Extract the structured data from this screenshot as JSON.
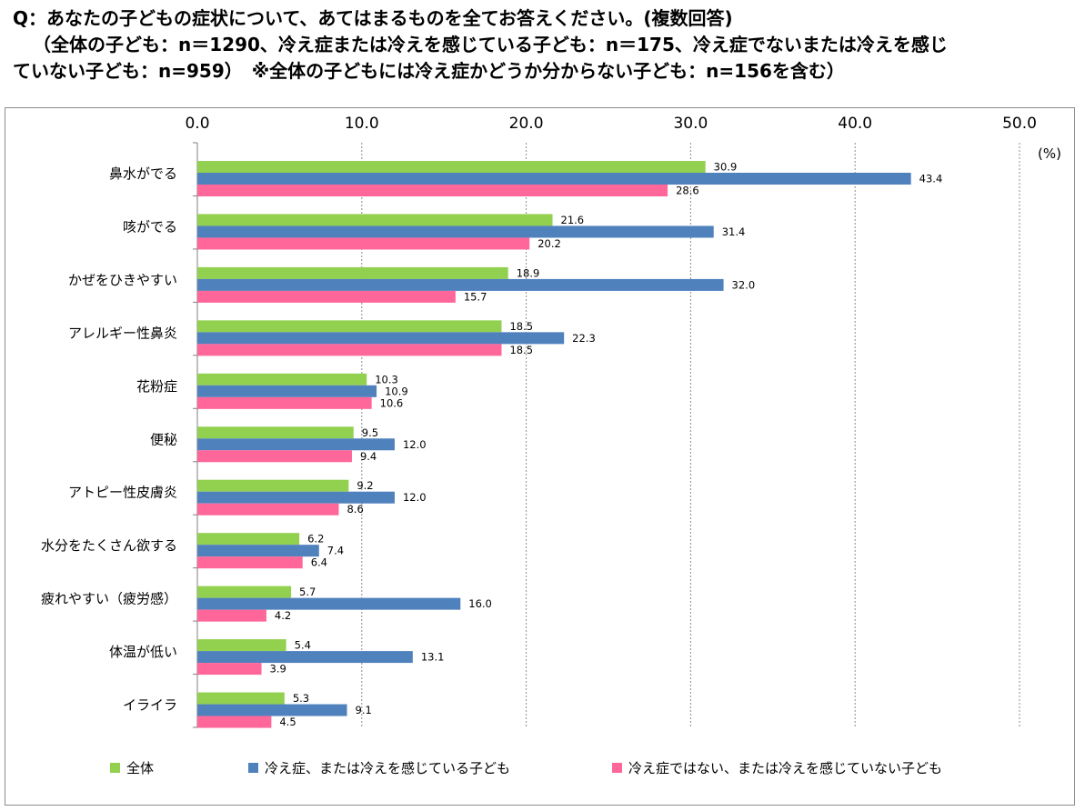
{
  "title": {
    "line1": "Q：あなたの子どもの症状について、あてはまるものを全てお答えください。(複数回答)",
    "line2": "（全体の子ども：n＝1290、冷え症または冷えを感じている子ども：n＝175、冷え症でないまたは冷えを感じ",
    "line3": "ていない子ども：n=959）　※全体の子どもには冷え症かどうか分からない子ども：n=156を含む）"
  },
  "legend": [
    {
      "label": "全体",
      "color": "#92d050"
    },
    {
      "label": "冷え症、または冷えを感じている子ども",
      "color": "#4f81bd"
    },
    {
      "label": "冷え症ではない、または冷えを感じていない子ども",
      "color": "#ff6699"
    }
  ],
  "chart_data": {
    "type": "bar",
    "orientation": "horizontal",
    "unit": "(%)",
    "xlim": [
      0,
      50
    ],
    "x_ticks": [
      "0.0",
      "10.0",
      "20.0",
      "30.0",
      "40.0",
      "50.0"
    ],
    "grid": true,
    "legend_position": "bottom",
    "categories": [
      "鼻水がでる",
      "咳がでる",
      "かぜをひきやすい",
      "アレルギー性鼻炎",
      "花粉症",
      "便秘",
      "アトピー性皮膚炎",
      "水分をたくさん欲する",
      "疲れやすい（疲労感）",
      "体温が低い",
      "イライラ"
    ],
    "series": [
      {
        "name": "全体",
        "color": "#92d050",
        "values": [
          30.9,
          21.6,
          18.9,
          18.5,
          10.3,
          9.5,
          9.2,
          6.2,
          5.7,
          5.4,
          5.3
        ]
      },
      {
        "name": "冷え症、または冷えを感じている子ども",
        "color": "#4f81bd",
        "values": [
          43.4,
          31.4,
          32.0,
          22.3,
          10.9,
          12.0,
          12.0,
          7.4,
          16.0,
          13.1,
          9.1
        ]
      },
      {
        "name": "冷え症ではない、または冷えを感じていない子ども",
        "color": "#ff6699",
        "values": [
          28.6,
          20.2,
          15.7,
          18.5,
          10.6,
          9.4,
          8.6,
          6.4,
          4.2,
          3.9,
          4.5
        ]
      }
    ]
  }
}
